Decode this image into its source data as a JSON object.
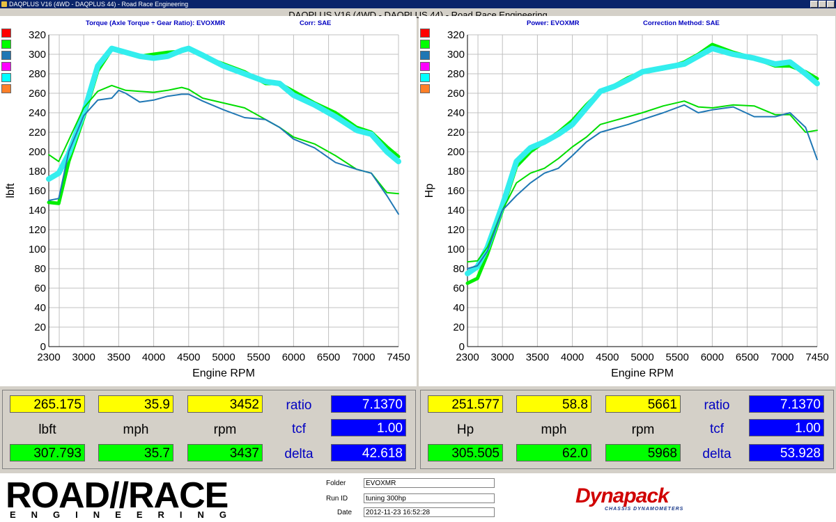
{
  "window": {
    "title": "DAQPLUS V16 (4WD - DAQPLUS 44) - Road Race Engineering"
  },
  "main_title": "DAQPLUS V16 (4WD - DAQPLUS 44) - Road Race Engineering",
  "left_panel": {
    "subtitle_left": "Torque (Axle Torque ÷ Gear Ratio): EVOXMR",
    "subtitle_right": "Corr: SAE"
  },
  "right_panel": {
    "subtitle_left": "Power: EVOXMR",
    "subtitle_right": "Correction Method: SAE"
  },
  "legend_colors": [
    "#ff0000",
    "#00ff00",
    "#1f77b4",
    "#ff00ff",
    "#00ffff",
    "#ff7f27"
  ],
  "chart_data": [
    {
      "type": "line",
      "ylabel": "lbft",
      "xlabel": "Engine RPM",
      "xlim": [
        2300,
        7450
      ],
      "ylim": [
        0,
        320
      ],
      "x_ticks": [
        "2300",
        "3000",
        "3500",
        "4000",
        "4500",
        "5000",
        "5500",
        "6000",
        "6500",
        "7000",
        "7450"
      ],
      "y_ticks": [
        0,
        20,
        40,
        60,
        80,
        100,
        120,
        140,
        160,
        180,
        200,
        220,
        240,
        260,
        280,
        300,
        320
      ],
      "grid": true,
      "series": [
        {
          "color": "#00ee00",
          "width": 5,
          "x": [
            2300,
            2500,
            2700,
            3000,
            3200,
            3400,
            3600,
            3800,
            4000,
            4200,
            4400,
            4500,
            4700,
            5000,
            5300,
            5600,
            5800,
            6000,
            6300,
            6600,
            6900,
            7100,
            7300,
            7450
          ],
          "y": [
            148,
            147,
            190,
            235,
            283,
            305,
            302,
            298,
            300,
            302,
            303,
            305,
            298,
            290,
            282,
            270,
            270,
            262,
            250,
            240,
            225,
            220,
            205,
            195
          ]
        },
        {
          "color": "#33eeee",
          "width": 8,
          "x": [
            2300,
            2500,
            2700,
            3000,
            3200,
            3400,
            3600,
            3800,
            4000,
            4200,
            4400,
            4500,
            4700,
            5000,
            5300,
            5600,
            5800,
            6000,
            6300,
            6600,
            6900,
            7100,
            7300,
            7450
          ],
          "y": [
            172,
            178,
            198,
            240,
            288,
            306,
            302,
            298,
            296,
            298,
            304,
            306,
            299,
            288,
            280,
            272,
            270,
            258,
            248,
            236,
            222,
            218,
            200,
            190
          ]
        },
        {
          "color": "#00dd00",
          "width": 2,
          "x": [
            2300,
            2500,
            2700,
            3000,
            3200,
            3400,
            3600,
            3800,
            4000,
            4200,
            4400,
            4500,
            4700,
            5000,
            5300,
            5600,
            5800,
            6000,
            6300,
            6600,
            6900,
            7100,
            7300,
            7450
          ],
          "y": [
            197,
            190,
            212,
            245,
            262,
            268,
            263,
            262,
            261,
            263,
            266,
            264,
            255,
            250,
            245,
            233,
            225,
            215,
            208,
            196,
            182,
            178,
            158,
            157
          ]
        },
        {
          "color": "#1f77b4",
          "width": 2,
          "x": [
            2300,
            2500,
            2700,
            3000,
            3200,
            3400,
            3500,
            3600,
            3800,
            4000,
            4200,
            4400,
            4500,
            4700,
            5000,
            5300,
            5600,
            5800,
            6000,
            6300,
            6600,
            6900,
            7100,
            7300,
            7450
          ],
          "y": [
            150,
            152,
            200,
            237,
            253,
            255,
            263,
            260,
            251,
            253,
            257,
            259,
            259,
            252,
            243,
            235,
            233,
            225,
            213,
            204,
            189,
            182,
            178,
            155,
            136
          ]
        }
      ]
    },
    {
      "type": "line",
      "ylabel": "Hp",
      "xlabel": "Engine RPM",
      "xlim": [
        2300,
        7450
      ],
      "ylim": [
        0,
        320
      ],
      "x_ticks": [
        "2300",
        "3000",
        "3500",
        "4000",
        "4500",
        "5000",
        "5500",
        "6000",
        "6500",
        "7000",
        "7450"
      ],
      "y_ticks": [
        0,
        20,
        40,
        60,
        80,
        100,
        120,
        140,
        160,
        180,
        200,
        220,
        240,
        260,
        280,
        300,
        320
      ],
      "grid": true,
      "series": [
        {
          "color": "#00ee00",
          "width": 5,
          "x": [
            2300,
            2500,
            2700,
            3000,
            3200,
            3400,
            3600,
            3800,
            4000,
            4200,
            4400,
            4600,
            4800,
            5000,
            5300,
            5600,
            5800,
            6000,
            6300,
            6600,
            6900,
            7100,
            7300,
            7450
          ],
          "y": [
            65,
            70,
            95,
            140,
            185,
            200,
            210,
            220,
            232,
            248,
            262,
            268,
            276,
            282,
            285,
            292,
            300,
            310,
            302,
            296,
            288,
            288,
            282,
            275
          ]
        },
        {
          "color": "#33eeee",
          "width": 8,
          "x": [
            2300,
            2500,
            2700,
            3000,
            3200,
            3400,
            3600,
            3800,
            4000,
            4200,
            4400,
            4600,
            4800,
            5000,
            5300,
            5600,
            5800,
            6000,
            6300,
            6600,
            6900,
            7100,
            7300,
            7450
          ],
          "y": [
            75,
            82,
            102,
            145,
            190,
            204,
            210,
            218,
            228,
            245,
            262,
            267,
            274,
            282,
            286,
            290,
            298,
            306,
            300,
            296,
            290,
            292,
            280,
            270
          ]
        },
        {
          "color": "#00dd00",
          "width": 2,
          "x": [
            2300,
            2500,
            2700,
            3000,
            3200,
            3400,
            3600,
            3800,
            4000,
            4200,
            4400,
            4600,
            4800,
            5000,
            5300,
            5600,
            5800,
            6000,
            6300,
            6600,
            6900,
            7100,
            7300,
            7450
          ],
          "y": [
            87,
            88,
            102,
            140,
            168,
            178,
            183,
            193,
            205,
            215,
            228,
            232,
            236,
            240,
            247,
            252,
            246,
            245,
            248,
            247,
            238,
            238,
            220,
            222
          ]
        },
        {
          "color": "#1f77b4",
          "width": 2,
          "x": [
            2300,
            2500,
            2700,
            3000,
            3200,
            3400,
            3600,
            3800,
            4000,
            4200,
            4400,
            4600,
            4800,
            5000,
            5300,
            5600,
            5800,
            6000,
            6300,
            6600,
            6900,
            7100,
            7300,
            7450
          ],
          "y": [
            80,
            83,
            98,
            140,
            155,
            168,
            178,
            183,
            196,
            210,
            220,
            224,
            228,
            233,
            240,
            248,
            240,
            243,
            246,
            236,
            236,
            240,
            225,
            192
          ]
        }
      ]
    }
  ],
  "readout_left": {
    "row1": [
      "265.175",
      "35.9",
      "3452"
    ],
    "units": [
      "lbft",
      "mph",
      "rpm"
    ],
    "row2": [
      "307.793",
      "35.7",
      "3437"
    ],
    "side_labels": [
      "ratio",
      "tcf",
      "delta"
    ],
    "side_values": [
      "7.1370",
      "1.00",
      "42.618"
    ]
  },
  "readout_right": {
    "row1": [
      "251.577",
      "58.8",
      "5661"
    ],
    "units": [
      "Hp",
      "mph",
      "rpm"
    ],
    "row2": [
      "305.505",
      "62.0",
      "5968"
    ],
    "side_labels": [
      "ratio",
      "tcf",
      "delta"
    ],
    "side_values": [
      "7.1370",
      "1.00",
      "53.928"
    ]
  },
  "footer": {
    "logo_top": "ROAD//RACE",
    "logo_bottom": "ENGINEERING",
    "folder_label": "Folder",
    "folder_value": "EVOXMR",
    "runid_label": "Run ID",
    "runid_value": "tuning 300hp",
    "date_label": "Date",
    "date_value": "2012-11-23 16:52:28",
    "brand": "Dynapack",
    "brand_sub": "CHASSIS DYNAMOMETERS"
  }
}
